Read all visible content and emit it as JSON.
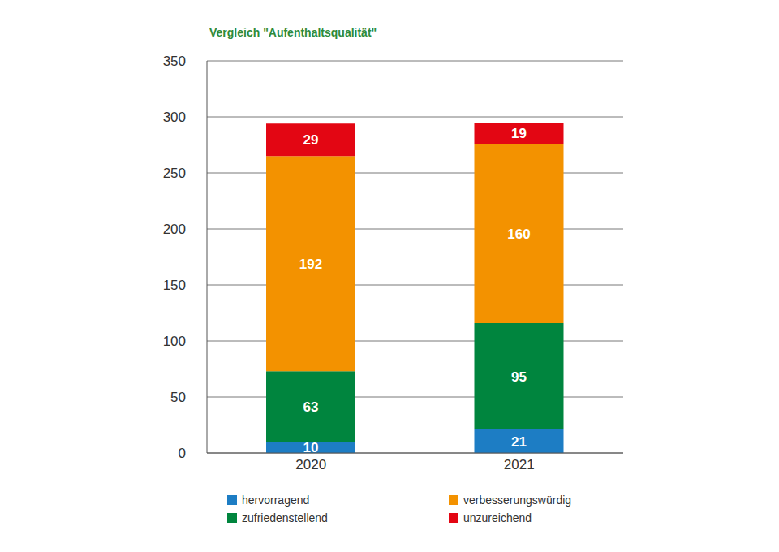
{
  "chart_data": {
    "type": "bar",
    "title": "Vergleich \"Aufenthaltsqualität\"",
    "categories": [
      "2020",
      "2021"
    ],
    "series": [
      {
        "name": "hervorragend",
        "color": "#1d7dc4",
        "values": [
          10,
          21
        ]
      },
      {
        "name": "zufriedenstellend",
        "color": "#00853e",
        "values": [
          63,
          95
        ]
      },
      {
        "name": "verbesserungswürdig",
        "color": "#f39200",
        "values": [
          192,
          160
        ]
      },
      {
        "name": "unzureichend",
        "color": "#e30613",
        "values": [
          29,
          19
        ]
      }
    ],
    "ylim": [
      0,
      350
    ],
    "yticks": [
      0,
      50,
      100,
      150,
      200,
      250,
      300,
      350
    ],
    "stacked": true,
    "data_labels": true,
    "grid": true,
    "legend": "bottom"
  }
}
